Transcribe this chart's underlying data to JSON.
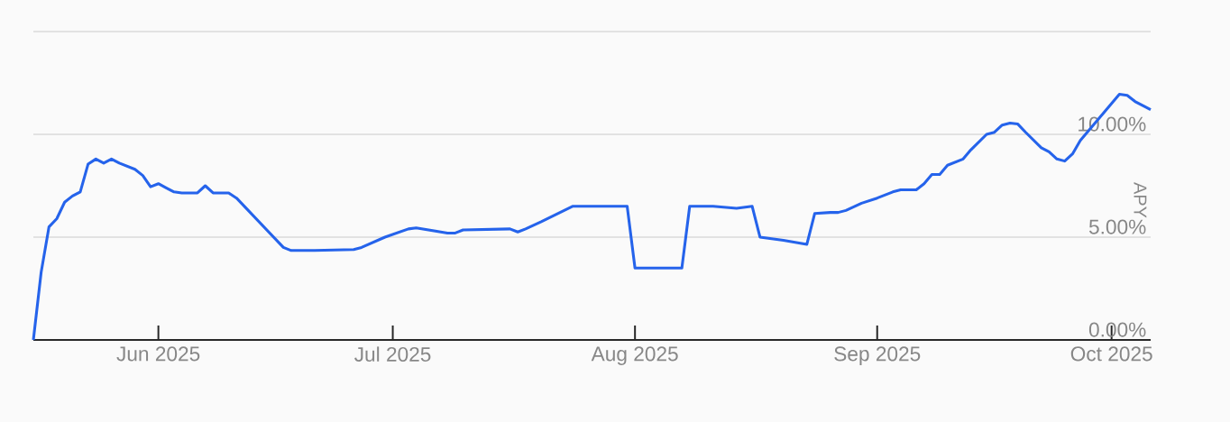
{
  "chart_data": {
    "type": "line",
    "ylabel": "APY",
    "grid": "y",
    "xlim": [
      "2025-05-16",
      "2025-10-06"
    ],
    "ylim": [
      0,
      15
    ],
    "xticks": [
      {
        "value": "2025-06-01",
        "label": "Jun 2025"
      },
      {
        "value": "2025-07-01",
        "label": "Jul 2025"
      },
      {
        "value": "2025-08-01",
        "label": "Aug 2025"
      },
      {
        "value": "2025-09-01",
        "label": "Sep 2025"
      },
      {
        "value": "2025-10-01",
        "label": "Oct 2025"
      }
    ],
    "yticks": [
      {
        "value": 0,
        "label": "0.00%"
      },
      {
        "value": 5,
        "label": "5.00%"
      },
      {
        "value": 10,
        "label": "10.00%"
      },
      {
        "value": 15,
        "label": null
      }
    ],
    "x": [
      "2025-05-16",
      "2025-05-17",
      "2025-05-18",
      "2025-05-19",
      "2025-05-20",
      "2025-05-21",
      "2025-05-22",
      "2025-05-23",
      "2025-05-24",
      "2025-05-25",
      "2025-05-26",
      "2025-05-27",
      "2025-05-28",
      "2025-05-29",
      "2025-05-30",
      "2025-05-31",
      "2025-06-01",
      "2025-06-02",
      "2025-06-03",
      "2025-06-04",
      "2025-06-06",
      "2025-06-07",
      "2025-06-08",
      "2025-06-10",
      "2025-06-11",
      "2025-06-17",
      "2025-06-18",
      "2025-06-21",
      "2025-06-26",
      "2025-06-27",
      "2025-06-30",
      "2025-07-03",
      "2025-07-04",
      "2025-07-08",
      "2025-07-09",
      "2025-07-10",
      "2025-07-16",
      "2025-07-17",
      "2025-07-18",
      "2025-07-20",
      "2025-07-24",
      "2025-07-31",
      "2025-08-01",
      "2025-08-07",
      "2025-08-08",
      "2025-08-11",
      "2025-08-14",
      "2025-08-16",
      "2025-08-17",
      "2025-08-20",
      "2025-08-23",
      "2025-08-24",
      "2025-08-26",
      "2025-08-27",
      "2025-08-28",
      "2025-08-30",
      "2025-09-01",
      "2025-09-03",
      "2025-09-04",
      "2025-09-06",
      "2025-09-07",
      "2025-09-08",
      "2025-09-09",
      "2025-09-10",
      "2025-09-12",
      "2025-09-13",
      "2025-09-15",
      "2025-09-16",
      "2025-09-17",
      "2025-09-18",
      "2025-09-19",
      "2025-09-20",
      "2025-09-22",
      "2025-09-23",
      "2025-09-24",
      "2025-09-25",
      "2025-09-26",
      "2025-09-27",
      "2025-10-02",
      "2025-10-03",
      "2025-10-04",
      "2025-10-06"
    ],
    "series": [
      {
        "color": "#2563eb",
        "values": [
          0,
          3.3,
          5.5,
          5.9,
          6.7,
          7.0,
          7.2,
          8.55,
          8.8,
          8.6,
          8.8,
          8.6,
          8.45,
          8.3,
          8.0,
          7.45,
          7.6,
          7.4,
          7.2,
          7.15,
          7.15,
          7.5,
          7.15,
          7.15,
          6.9,
          4.5,
          4.35,
          4.35,
          4.4,
          4.5,
          5.0,
          5.4,
          5.45,
          5.2,
          5.2,
          5.35,
          5.4,
          5.25,
          5.4,
          5.75,
          6.5,
          6.5,
          3.5,
          3.5,
          6.5,
          6.5,
          6.4,
          6.5,
          5.0,
          4.85,
          4.65,
          6.15,
          6.2,
          6.2,
          6.3,
          6.65,
          6.9,
          7.2,
          7.3,
          7.3,
          7.6,
          8.05,
          8.05,
          8.5,
          8.8,
          9.25,
          10.0,
          10.1,
          10.45,
          10.55,
          10.5,
          10.1,
          9.35,
          9.15,
          8.8,
          8.7,
          9.05,
          9.7,
          11.95,
          11.9,
          11.6,
          11.2
        ]
      }
    ]
  }
}
